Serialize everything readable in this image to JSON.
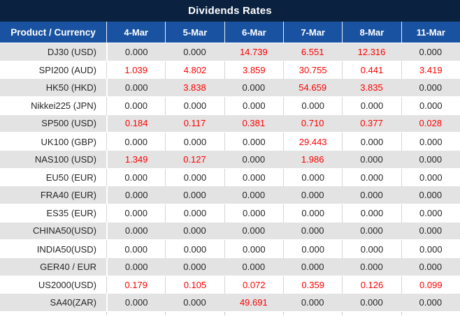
{
  "title": "Dividends Rates",
  "table": {
    "columns": [
      "Product / Currency",
      "4-Mar",
      "5-Mar",
      "6-Mar",
      "7-Mar",
      "8-Mar",
      "11-Mar"
    ],
    "rows": [
      {
        "product": "DJ30 (USD)",
        "values": [
          "0.000",
          "0.000",
          "14.739",
          "6.551",
          "12.316",
          "0.000"
        ]
      },
      {
        "product": "SPI200 (AUD)",
        "values": [
          "1.039",
          "4.802",
          "3.859",
          "30.755",
          "0.441",
          "3.419"
        ]
      },
      {
        "product": "HK50 (HKD)",
        "values": [
          "0.000",
          "3.838",
          "0.000",
          "54.659",
          "3.835",
          "0.000"
        ]
      },
      {
        "product": "Nikkei225 (JPN)",
        "values": [
          "0.000",
          "0.000",
          "0.000",
          "0.000",
          "0.000",
          "0.000"
        ]
      },
      {
        "product": "SP500 (USD)",
        "values": [
          "0.184",
          "0.117",
          "0.381",
          "0.710",
          "0.377",
          "0.028"
        ]
      },
      {
        "product": "UK100 (GBP)",
        "values": [
          "0.000",
          "0.000",
          "0.000",
          "29.443",
          "0.000",
          "0.000"
        ]
      },
      {
        "product": "NAS100 (USD)",
        "values": [
          "1.349",
          "0.127",
          "0.000",
          "1.986",
          "0.000",
          "0.000"
        ]
      },
      {
        "product": "EU50 (EUR)",
        "values": [
          "0.000",
          "0.000",
          "0.000",
          "0.000",
          "0.000",
          "0.000"
        ]
      },
      {
        "product": "FRA40 (EUR)",
        "values": [
          "0.000",
          "0.000",
          "0.000",
          "0.000",
          "0.000",
          "0.000"
        ]
      },
      {
        "product": "ES35 (EUR)",
        "values": [
          "0.000",
          "0.000",
          "0.000",
          "0.000",
          "0.000",
          "0.000"
        ]
      },
      {
        "product": "CHINA50(USD)",
        "values": [
          "0.000",
          "0.000",
          "0.000",
          "0.000",
          "0.000",
          "0.000"
        ]
      },
      {
        "product": "INDIA50(USD)",
        "values": [
          "0.000",
          "0.000",
          "0.000",
          "0.000",
          "0.000",
          "0.000"
        ]
      },
      {
        "product": "GER40 / EUR",
        "values": [
          "0.000",
          "0.000",
          "0.000",
          "0.000",
          "0.000",
          "0.000"
        ]
      },
      {
        "product": "US2000(USD)",
        "values": [
          "0.179",
          "0.105",
          "0.072",
          "0.359",
          "0.126",
          "0.099"
        ]
      },
      {
        "product": "SA40(ZAR)",
        "values": [
          "0.000",
          "0.000",
          "49.691",
          "0.000",
          "0.000",
          "0.000"
        ]
      }
    ]
  },
  "colors": {
    "title_bar_bg": "#0a2240",
    "header_bg": "#1952a0",
    "row_alt_bg": "#e3e3e3",
    "positive_value": "#fe0000",
    "zero_value": "#262626"
  }
}
